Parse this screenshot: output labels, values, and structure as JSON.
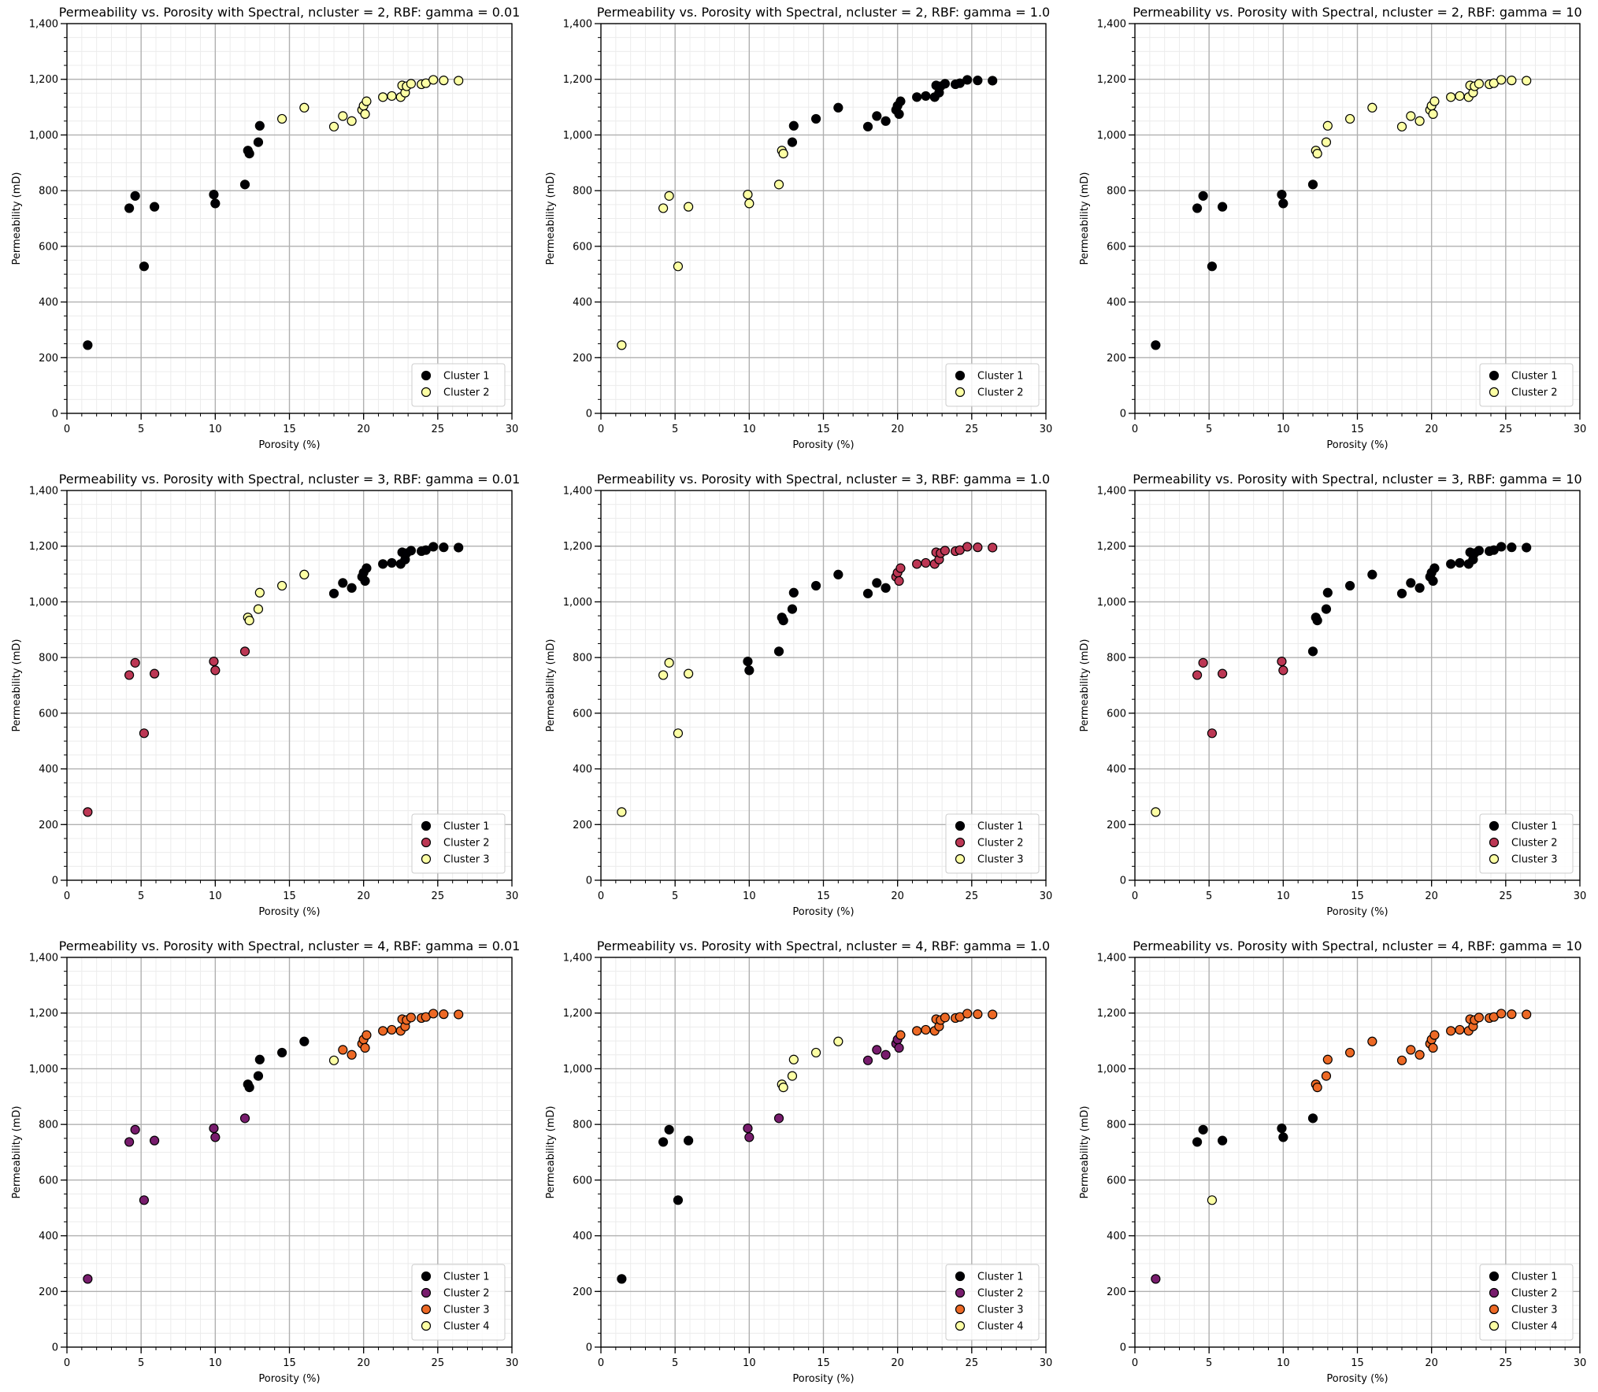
{
  "points": {
    "x": [
      1.4,
      4.2,
      4.6,
      5.2,
      5.9,
      9.9,
      10.0,
      12.0,
      12.2,
      12.3,
      12.9,
      13.0,
      14.5,
      16.0,
      18.0,
      18.6,
      19.2,
      19.9,
      20.0,
      20.1,
      20.2,
      21.3,
      21.9,
      22.5,
      22.6,
      22.8,
      22.9,
      23.2,
      23.9,
      24.2,
      24.7,
      25.4,
      26.4
    ],
    "y": [
      245,
      737,
      781,
      528,
      742,
      786,
      754,
      822,
      944,
      933,
      974,
      1033,
      1058,
      1098,
      1030,
      1068,
      1050,
      1090,
      1105,
      1075,
      1121,
      1136,
      1140,
      1136,
      1178,
      1152,
      1175,
      1184,
      1182,
      1186,
      1198,
      1196,
      1195
    ]
  },
  "palette": {
    "cluster_colors_2": [
      "#000004",
      "#fcffa4"
    ],
    "cluster_colors_3": [
      "#000004",
      "#bc3754",
      "#fcffa4"
    ],
    "cluster_colors_4": [
      "#000004",
      "#781c6d",
      "#ed6925",
      "#fcffa4"
    ]
  },
  "chart_data": [
    {
      "type": "scatter",
      "title": "Permeability vs. Porosity with Spectral, ncluster = 2, RBF: gamma = 0.01",
      "xlabel": "Porosity (%)",
      "ylabel": "Permeability (mD)",
      "xlim": [
        0,
        30
      ],
      "ylim": [
        0,
        1400
      ],
      "xticks": [
        "0",
        "5",
        "10",
        "15",
        "20",
        "25",
        "30"
      ],
      "yticks": [
        "0",
        "200",
        "400",
        "600",
        "800",
        "1,000",
        "1,200",
        "1,400"
      ],
      "grid": true,
      "legend": "bottom-right",
      "ncluster": 2,
      "series": [
        {
          "name": "Cluster 1",
          "color": "#000004"
        },
        {
          "name": "Cluster 2",
          "color": "#fcffa4"
        }
      ],
      "labels": [
        0,
        0,
        0,
        0,
        0,
        0,
        0,
        0,
        0,
        0,
        0,
        0,
        1,
        1,
        1,
        1,
        1,
        1,
        1,
        1,
        1,
        1,
        1,
        1,
        1,
        1,
        1,
        1,
        1,
        1,
        1,
        1,
        1
      ]
    },
    {
      "type": "scatter",
      "title": "Permeability vs. Porosity with Spectral, ncluster = 2, RBF: gamma = 1.0",
      "xlabel": "Porosity (%)",
      "ylabel": "Permeability (mD)",
      "xlim": [
        0,
        30
      ],
      "ylim": [
        0,
        1400
      ],
      "xticks": [
        "0",
        "5",
        "10",
        "15",
        "20",
        "25",
        "30"
      ],
      "yticks": [
        "0",
        "200",
        "400",
        "600",
        "800",
        "1,000",
        "1,200",
        "1,400"
      ],
      "grid": true,
      "legend": "bottom-right",
      "ncluster": 2,
      "series": [
        {
          "name": "Cluster 1",
          "color": "#000004"
        },
        {
          "name": "Cluster 2",
          "color": "#fcffa4"
        }
      ],
      "labels": [
        1,
        1,
        1,
        1,
        1,
        1,
        1,
        1,
        1,
        1,
        0,
        0,
        0,
        0,
        0,
        0,
        0,
        0,
        0,
        0,
        0,
        0,
        0,
        0,
        0,
        0,
        0,
        0,
        0,
        0,
        0,
        0,
        0
      ]
    },
    {
      "type": "scatter",
      "title": "Permeability vs. Porosity with Spectral, ncluster = 2, RBF: gamma = 10",
      "xlabel": "Porosity (%)",
      "ylabel": "Permeability (mD)",
      "xlim": [
        0,
        30
      ],
      "ylim": [
        0,
        1400
      ],
      "xticks": [
        "0",
        "5",
        "10",
        "15",
        "20",
        "25",
        "30"
      ],
      "yticks": [
        "0",
        "200",
        "400",
        "600",
        "800",
        "1,000",
        "1,200",
        "1,400"
      ],
      "grid": true,
      "legend": "bottom-right",
      "ncluster": 2,
      "series": [
        {
          "name": "Cluster 1",
          "color": "#000004"
        },
        {
          "name": "Cluster 2",
          "color": "#fcffa4"
        }
      ],
      "labels": [
        0,
        0,
        0,
        0,
        0,
        0,
        0,
        0,
        1,
        1,
        1,
        1,
        1,
        1,
        1,
        1,
        1,
        1,
        1,
        1,
        1,
        1,
        1,
        1,
        1,
        1,
        1,
        1,
        1,
        1,
        1,
        1,
        1
      ]
    },
    {
      "type": "scatter",
      "title": "Permeability vs. Porosity with Spectral, ncluster = 3, RBF: gamma = 0.01",
      "xlabel": "Porosity (%)",
      "ylabel": "Permeability (mD)",
      "xlim": [
        0,
        30
      ],
      "ylim": [
        0,
        1400
      ],
      "xticks": [
        "0",
        "5",
        "10",
        "15",
        "20",
        "25",
        "30"
      ],
      "yticks": [
        "0",
        "200",
        "400",
        "600",
        "800",
        "1,000",
        "1,200",
        "1,400"
      ],
      "grid": true,
      "legend": "bottom-right",
      "ncluster": 3,
      "series": [
        {
          "name": "Cluster 1",
          "color": "#000004"
        },
        {
          "name": "Cluster 2",
          "color": "#bc3754"
        },
        {
          "name": "Cluster 3",
          "color": "#fcffa4"
        }
      ],
      "labels": [
        1,
        1,
        1,
        1,
        1,
        1,
        1,
        1,
        2,
        2,
        2,
        2,
        2,
        2,
        0,
        0,
        0,
        0,
        0,
        0,
        0,
        0,
        0,
        0,
        0,
        0,
        0,
        0,
        0,
        0,
        0,
        0,
        0
      ]
    },
    {
      "type": "scatter",
      "title": "Permeability vs. Porosity with Spectral, ncluster = 3, RBF: gamma = 1.0",
      "xlabel": "Porosity (%)",
      "ylabel": "Permeability (mD)",
      "xlim": [
        0,
        30
      ],
      "ylim": [
        0,
        1400
      ],
      "xticks": [
        "0",
        "5",
        "10",
        "15",
        "20",
        "25",
        "30"
      ],
      "yticks": [
        "0",
        "200",
        "400",
        "600",
        "800",
        "1,000",
        "1,200",
        "1,400"
      ],
      "grid": true,
      "legend": "bottom-right",
      "ncluster": 3,
      "series": [
        {
          "name": "Cluster 1",
          "color": "#000004"
        },
        {
          "name": "Cluster 2",
          "color": "#bc3754"
        },
        {
          "name": "Cluster 3",
          "color": "#fcffa4"
        }
      ],
      "labels": [
        2,
        2,
        2,
        2,
        2,
        0,
        0,
        0,
        0,
        0,
        0,
        0,
        0,
        0,
        0,
        0,
        0,
        1,
        1,
        1,
        1,
        1,
        1,
        1,
        1,
        1,
        1,
        1,
        1,
        1,
        1,
        1,
        1
      ]
    },
    {
      "type": "scatter",
      "title": "Permeability vs. Porosity with Spectral, ncluster = 3, RBF: gamma = 10",
      "xlabel": "Porosity (%)",
      "ylabel": "Permeability (mD)",
      "xlim": [
        0,
        30
      ],
      "ylim": [
        0,
        1400
      ],
      "xticks": [
        "0",
        "5",
        "10",
        "15",
        "20",
        "25",
        "30"
      ],
      "yticks": [
        "0",
        "200",
        "400",
        "600",
        "800",
        "1,000",
        "1,200",
        "1,400"
      ],
      "grid": true,
      "legend": "bottom-right",
      "ncluster": 3,
      "series": [
        {
          "name": "Cluster 1",
          "color": "#000004"
        },
        {
          "name": "Cluster 2",
          "color": "#bc3754"
        },
        {
          "name": "Cluster 3",
          "color": "#fcffa4"
        }
      ],
      "labels": [
        2,
        1,
        1,
        1,
        1,
        1,
        1,
        0,
        0,
        0,
        0,
        0,
        0,
        0,
        0,
        0,
        0,
        0,
        0,
        0,
        0,
        0,
        0,
        0,
        0,
        0,
        0,
        0,
        0,
        0,
        0,
        0,
        0
      ]
    },
    {
      "type": "scatter",
      "title": "Permeability vs. Porosity with Spectral, ncluster = 4, RBF: gamma = 0.01",
      "xlabel": "Porosity (%)",
      "ylabel": "Permeability (mD)",
      "xlim": [
        0,
        30
      ],
      "ylim": [
        0,
        1400
      ],
      "xticks": [
        "0",
        "5",
        "10",
        "15",
        "20",
        "25",
        "30"
      ],
      "yticks": [
        "0",
        "200",
        "400",
        "600",
        "800",
        "1,000",
        "1,200",
        "1,400"
      ],
      "grid": true,
      "legend": "bottom-right",
      "ncluster": 4,
      "series": [
        {
          "name": "Cluster 1",
          "color": "#000004"
        },
        {
          "name": "Cluster 2",
          "color": "#781c6d"
        },
        {
          "name": "Cluster 3",
          "color": "#ed6925"
        },
        {
          "name": "Cluster 4",
          "color": "#fcffa4"
        }
      ],
      "labels": [
        1,
        1,
        1,
        1,
        1,
        1,
        1,
        1,
        0,
        0,
        0,
        0,
        0,
        0,
        3,
        2,
        2,
        2,
        2,
        2,
        2,
        2,
        2,
        2,
        2,
        2,
        2,
        2,
        2,
        2,
        2,
        2,
        2
      ]
    },
    {
      "type": "scatter",
      "title": "Permeability vs. Porosity with Spectral, ncluster = 4, RBF: gamma = 1.0",
      "xlabel": "Porosity (%)",
      "ylabel": "Permeability (mD)",
      "xlim": [
        0,
        30
      ],
      "ylim": [
        0,
        1400
      ],
      "xticks": [
        "0",
        "5",
        "10",
        "15",
        "20",
        "25",
        "30"
      ],
      "yticks": [
        "0",
        "200",
        "400",
        "600",
        "800",
        "1,000",
        "1,200",
        "1,400"
      ],
      "grid": true,
      "legend": "bottom-right",
      "ncluster": 4,
      "series": [
        {
          "name": "Cluster 1",
          "color": "#000004"
        },
        {
          "name": "Cluster 2",
          "color": "#781c6d"
        },
        {
          "name": "Cluster 3",
          "color": "#ed6925"
        },
        {
          "name": "Cluster 4",
          "color": "#fcffa4"
        }
      ],
      "labels": [
        0,
        0,
        0,
        0,
        0,
        1,
        1,
        1,
        3,
        3,
        3,
        3,
        3,
        3,
        1,
        1,
        1,
        1,
        1,
        1,
        2,
        2,
        2,
        2,
        2,
        2,
        2,
        2,
        2,
        2,
        2,
        2,
        2
      ]
    },
    {
      "type": "scatter",
      "title": "Permeability vs. Porosity with Spectral, ncluster = 4, RBF: gamma = 10",
      "xlabel": "Porosity (%)",
      "ylabel": "Permeability (mD)",
      "xlim": [
        0,
        30
      ],
      "ylim": [
        0,
        1400
      ],
      "xticks": [
        "0",
        "5",
        "10",
        "15",
        "20",
        "25",
        "30"
      ],
      "yticks": [
        "0",
        "200",
        "400",
        "600",
        "800",
        "1,000",
        "1,200",
        "1,400"
      ],
      "grid": true,
      "legend": "bottom-right",
      "ncluster": 4,
      "series": [
        {
          "name": "Cluster 1",
          "color": "#000004"
        },
        {
          "name": "Cluster 2",
          "color": "#781c6d"
        },
        {
          "name": "Cluster 3",
          "color": "#ed6925"
        },
        {
          "name": "Cluster 4",
          "color": "#fcffa4"
        }
      ],
      "labels": [
        1,
        0,
        0,
        3,
        0,
        0,
        0,
        0,
        2,
        2,
        2,
        2,
        2,
        2,
        2,
        2,
        2,
        2,
        2,
        2,
        2,
        2,
        2,
        2,
        2,
        2,
        2,
        2,
        2,
        2,
        2,
        2,
        2
      ]
    }
  ]
}
